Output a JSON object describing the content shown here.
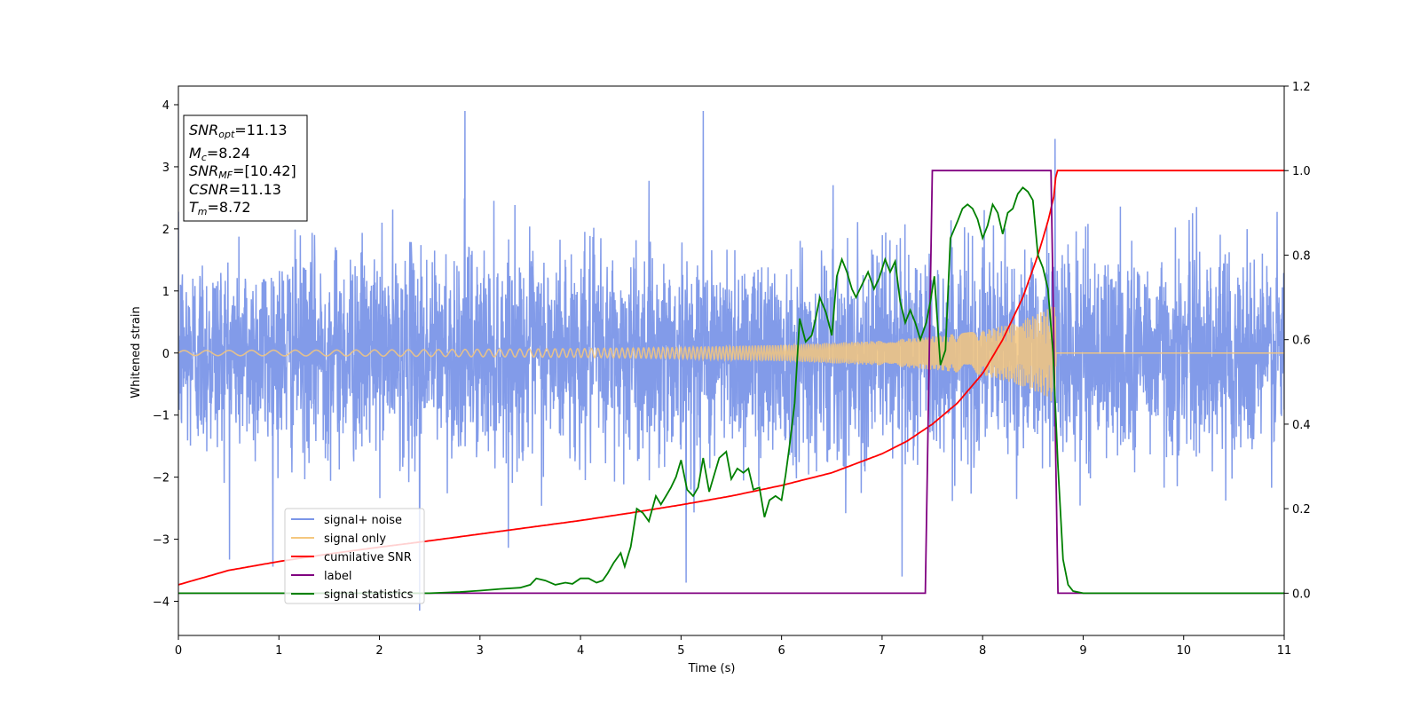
{
  "chart_data": {
    "type": "line",
    "xlabel": "Time (s)",
    "ylabel": "Whitened strain",
    "xlim": [
      0,
      11
    ],
    "ylim_left": [
      -4.55,
      4.3
    ],
    "ylim_right": [
      -0.1,
      1.2
    ],
    "xticks": [
      "0",
      "1",
      "2",
      "3",
      "4",
      "5",
      "6",
      "7",
      "8",
      "9",
      "10",
      "11"
    ],
    "yticks_left": [
      "−4",
      "−3",
      "−2",
      "−1",
      "0",
      "1",
      "2",
      "3",
      "4"
    ],
    "yticks_right": [
      "0.0",
      "0.2",
      "0.4",
      "0.6",
      "0.8",
      "1.0",
      "1.2"
    ],
    "grid": false,
    "legend_position": "lower-left",
    "annotation": {
      "snr_opt": {
        "sym": "SNR",
        "sub": "opt",
        "value": "=11.13"
      },
      "mc": {
        "sym": "M",
        "sub": "c",
        "value": "=8.24"
      },
      "snr_mf": {
        "sym": "SNR",
        "sub": "MF",
        "value": "=[10.42]"
      },
      "csnr": {
        "sym": "CSNR",
        "sub": "",
        "value": "=11.13"
      },
      "tm": {
        "sym": "T",
        "sub": "m",
        "value": "=8.72"
      }
    },
    "series": [
      {
        "name": "signal+ noise",
        "color": "#7b96e8",
        "axis": "left",
        "noise_std": 0.82,
        "x_range": [
          0,
          11
        ],
        "peak_values": [
          [
            2.85,
            3.9
          ],
          [
            5.22,
            3.9
          ],
          [
            8.72,
            3.45
          ],
          [
            2.4,
            -4.15
          ],
          [
            5.05,
            -3.7
          ],
          [
            7.2,
            -3.6
          ]
        ]
      },
      {
        "name": "signal only",
        "color": "#f5c77e",
        "axis": "left",
        "envelope": [
          [
            0,
            0.04
          ],
          [
            2,
            0.05
          ],
          [
            4,
            0.07
          ],
          [
            5,
            0.09
          ],
          [
            6,
            0.13
          ],
          [
            7,
            0.2
          ],
          [
            7.5,
            0.27
          ],
          [
            8,
            0.36
          ],
          [
            8.3,
            0.48
          ],
          [
            8.5,
            0.6
          ],
          [
            8.65,
            0.72
          ],
          [
            8.72,
            0.85
          ],
          [
            8.73,
            0.0
          ],
          [
            11,
            0.0
          ]
        ]
      },
      {
        "name": "cumilative SNR",
        "color": "#ff0000",
        "axis": "right",
        "x": [
          0,
          0.5,
          1,
          1.5,
          2,
          2.5,
          3,
          3.5,
          4,
          4.5,
          5,
          5.5,
          6,
          6.5,
          7,
          7.25,
          7.5,
          7.75,
          8,
          8.2,
          8.4,
          8.55,
          8.65,
          8.72,
          8.73,
          11
        ],
        "values": [
          0.02,
          0.054,
          0.075,
          0.093,
          0.109,
          0.124,
          0.14,
          0.156,
          0.172,
          0.19,
          0.209,
          0.23,
          0.255,
          0.285,
          0.33,
          0.36,
          0.4,
          0.45,
          0.52,
          0.6,
          0.7,
          0.8,
          0.88,
          0.95,
          1.0,
          1.0
        ]
      },
      {
        "name": "label",
        "color": "#800080",
        "axis": "right",
        "x": [
          0,
          7.43,
          7.5,
          8.68,
          8.75,
          11
        ],
        "values": [
          0.0,
          0.0,
          1.0,
          1.0,
          0.0,
          0.0
        ]
      },
      {
        "name": "signal statistics",
        "color": "#008000",
        "axis": "right",
        "x": [
          0,
          2.5,
          2.8,
          3.0,
          3.2,
          3.4,
          3.5,
          3.56,
          3.65,
          3.75,
          3.85,
          3.92,
          4.0,
          4.08,
          4.16,
          4.22,
          4.27,
          4.33,
          4.4,
          4.44,
          4.5,
          4.56,
          4.62,
          4.68,
          4.75,
          4.8,
          4.85,
          4.9,
          4.95,
          5.0,
          5.06,
          5.12,
          5.17,
          5.22,
          5.28,
          5.33,
          5.38,
          5.45,
          5.5,
          5.56,
          5.62,
          5.67,
          5.72,
          5.78,
          5.83,
          5.88,
          5.94,
          6.0,
          6.04,
          6.08,
          6.13,
          6.18,
          6.24,
          6.3,
          6.34,
          6.38,
          6.44,
          6.5,
          6.55,
          6.6,
          6.65,
          6.7,
          6.74,
          6.8,
          6.86,
          6.92,
          6.97,
          7.03,
          7.08,
          7.13,
          7.18,
          7.23,
          7.28,
          7.33,
          7.38,
          7.44,
          7.48,
          7.52,
          7.58,
          7.63,
          7.68,
          7.75,
          7.8,
          7.85,
          7.9,
          7.95,
          8.0,
          8.05,
          8.1,
          8.15,
          8.2,
          8.25,
          8.3,
          8.35,
          8.4,
          8.45,
          8.5,
          8.55,
          8.6,
          8.65,
          8.7,
          8.75,
          8.8,
          8.85,
          8.9,
          9.0,
          11
        ],
        "values": [
          0.0,
          0.0,
          0.003,
          0.006,
          0.01,
          0.013,
          0.02,
          0.035,
          0.03,
          0.02,
          0.025,
          0.022,
          0.035,
          0.035,
          0.025,
          0.03,
          0.047,
          0.072,
          0.095,
          0.063,
          0.11,
          0.2,
          0.19,
          0.17,
          0.23,
          0.21,
          0.23,
          0.25,
          0.275,
          0.315,
          0.245,
          0.23,
          0.25,
          0.32,
          0.24,
          0.28,
          0.32,
          0.335,
          0.27,
          0.295,
          0.285,
          0.295,
          0.245,
          0.25,
          0.18,
          0.22,
          0.23,
          0.22,
          0.28,
          0.35,
          0.45,
          0.65,
          0.595,
          0.61,
          0.65,
          0.7,
          0.665,
          0.61,
          0.75,
          0.79,
          0.76,
          0.72,
          0.7,
          0.73,
          0.76,
          0.72,
          0.745,
          0.79,
          0.76,
          0.785,
          0.69,
          0.64,
          0.67,
          0.64,
          0.6,
          0.64,
          0.69,
          0.75,
          0.54,
          0.575,
          0.84,
          0.88,
          0.91,
          0.92,
          0.91,
          0.885,
          0.84,
          0.87,
          0.92,
          0.9,
          0.85,
          0.9,
          0.91,
          0.945,
          0.96,
          0.95,
          0.93,
          0.8,
          0.77,
          0.72,
          0.57,
          0.3,
          0.08,
          0.02,
          0.005,
          0.0,
          0.0
        ]
      }
    ]
  }
}
